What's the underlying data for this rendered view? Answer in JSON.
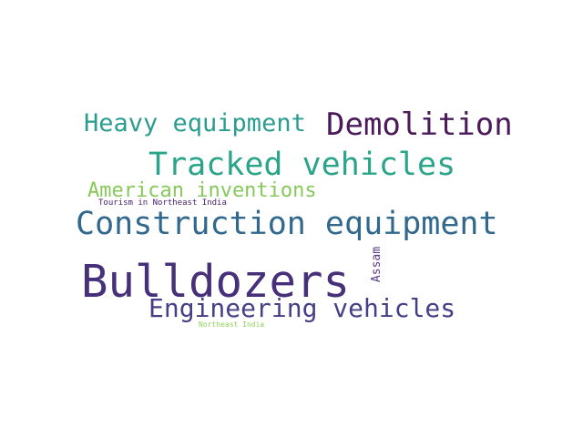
{
  "words": [
    {
      "text": "Heavy equipment",
      "color": "#2a9d8f"
    },
    {
      "text": "Demolition",
      "color": "#4a1a5a"
    },
    {
      "text": "Tracked vehicles",
      "color": "#2aa58a"
    },
    {
      "text": "American inventions",
      "color": "#86c95a"
    },
    {
      "text": "Tourism in Northeast India",
      "color": "#45206e"
    },
    {
      "text": "Construction equipment",
      "color": "#31688e"
    },
    {
      "text": "Bulldozers",
      "color": "#46307a"
    },
    {
      "text": "Assam",
      "color": "#5b3a8a"
    },
    {
      "text": "Engineering vehicles",
      "color": "#443f86"
    },
    {
      "text": "Northeast India",
      "color": "#8fd15a"
    }
  ]
}
